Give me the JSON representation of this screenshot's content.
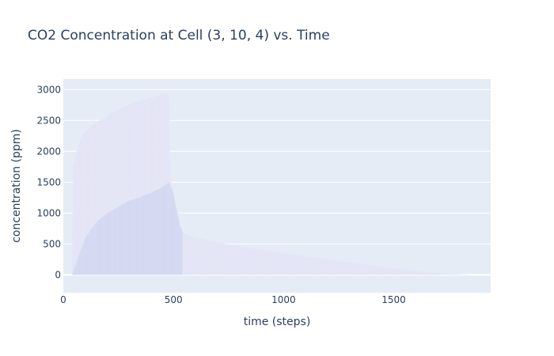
{
  "chart_data": {
    "type": "bar",
    "title": "CO2 Concentration at Cell (3, 10, 4) vs. Time",
    "xlabel": "time (steps)",
    "ylabel": "concentration (ppm)",
    "xlim": [
      0,
      1940
    ],
    "ylim": [
      -290,
      3170
    ],
    "x_ticks": [
      0,
      500,
      1000,
      1500
    ],
    "y_ticks": [
      0,
      500,
      1000,
      1500,
      2000,
      2500,
      3000
    ],
    "grid": true,
    "legend": "none",
    "colors": {
      "bar": "#e3e6f6",
      "bar_edge": "#d2d7f2",
      "plot_bg": "#e5ecf6",
      "grid": "#ffffff",
      "text": "#2a3f5f"
    },
    "series": [
      {
        "x": [
          0,
          40,
          45,
          50,
          60,
          70,
          80,
          90,
          100,
          110,
          120,
          130,
          140,
          150,
          160,
          170,
          180,
          190,
          200,
          210,
          220,
          230,
          240,
          250,
          260,
          270,
          280,
          290,
          300,
          310,
          320,
          330,
          340,
          350,
          360,
          370,
          380,
          390,
          400,
          410,
          420,
          430,
          440,
          450,
          460,
          470,
          480,
          485,
          490,
          500,
          510,
          520,
          530,
          540,
          560,
          600,
          650,
          700,
          750,
          800,
          900,
          1000,
          1100,
          1200,
          1300,
          1400,
          1500,
          1600,
          1700,
          1800,
          1850,
          1880
        ],
        "y": [
          0,
          0,
          1760,
          1800,
          2000,
          2100,
          2200,
          2270,
          2320,
          2350,
          2380,
          2410,
          2440,
          2460,
          2490,
          2510,
          2530,
          2550,
          2580,
          2600,
          2620,
          2640,
          2650,
          2670,
          2690,
          2700,
          2720,
          2740,
          2750,
          2770,
          2780,
          2800,
          2810,
          2820,
          2830,
          2840,
          2850,
          2860,
          2870,
          2880,
          2890,
          2900,
          2910,
          2920,
          2930,
          2940,
          2860,
          1600,
          1500,
          1350,
          1150,
          1050,
          720,
          680,
          650,
          600,
          560,
          520,
          490,
          460,
          400,
          350,
          300,
          250,
          200,
          150,
          100,
          60,
          30,
          5,
          0,
          0
        ]
      },
      {
        "x": [
          0,
          40,
          60,
          80,
          100,
          150,
          200,
          250,
          300,
          350,
          400,
          450,
          480,
          500,
          510,
          520,
          530,
          540
        ],
        "y": [
          0,
          0,
          200,
          400,
          600,
          850,
          1000,
          1100,
          1200,
          1260,
          1330,
          1420,
          1500,
          1300,
          1100,
          950,
          800,
          720
        ]
      }
    ]
  }
}
